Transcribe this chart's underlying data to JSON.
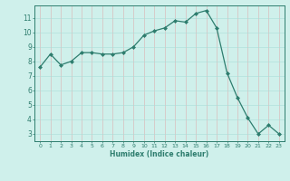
{
  "x": [
    0,
    1,
    2,
    3,
    4,
    5,
    6,
    7,
    8,
    9,
    10,
    11,
    12,
    13,
    14,
    15,
    16,
    17,
    18,
    19,
    20,
    21,
    22,
    23
  ],
  "y": [
    7.6,
    8.5,
    7.75,
    8.0,
    8.6,
    8.6,
    8.5,
    8.5,
    8.6,
    9.0,
    9.8,
    10.1,
    10.3,
    10.8,
    10.7,
    11.3,
    11.5,
    10.3,
    7.2,
    5.5,
    4.1,
    3.0,
    3.6,
    3.0
  ],
  "line_color": "#2e7d6e",
  "marker": "D",
  "marker_size": 2.0,
  "bg_color": "#cff0eb",
  "grid_color": "#aaddd8",
  "grid_red_color": "#ddb0b0",
  "xlabel": "Humidex (Indice chaleur)",
  "xlim": [
    -0.5,
    23.5
  ],
  "ylim": [
    2.5,
    11.85
  ],
  "yticks": [
    3,
    4,
    5,
    6,
    7,
    8,
    9,
    10,
    11
  ],
  "xticks": [
    0,
    1,
    2,
    3,
    4,
    5,
    6,
    7,
    8,
    9,
    10,
    11,
    12,
    13,
    14,
    15,
    16,
    17,
    18,
    19,
    20,
    21,
    22,
    23
  ],
  "tick_color": "#2e7d6e",
  "label_color": "#2e7d6e",
  "xlabel_fontsize": 5.5,
  "ytick_fontsize": 5.5,
  "xtick_fontsize": 4.5
}
